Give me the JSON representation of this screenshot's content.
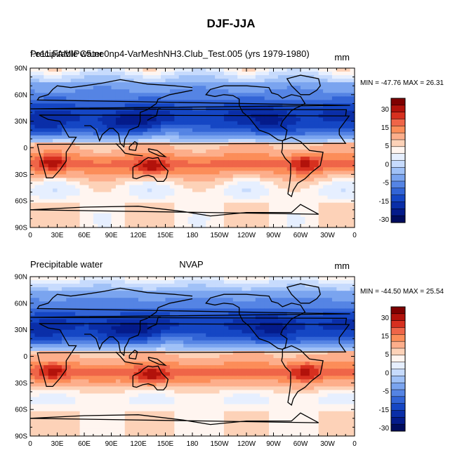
{
  "title": "DJF-JJA",
  "chart_data": [
    {
      "type": "heatmap",
      "left_title": "Precipitable water",
      "center_title": "",
      "overlapping_title": "f.e11.FAMIPC5.ne0np4-VarMeshNH3.Club_Test.005 (yrs 1979-1980)",
      "right_title": "mm",
      "min_max": "MIN = -47.76 MAX =  26.31",
      "x_tick_labels": [
        "0",
        "30E",
        "60E",
        "90E",
        "120E",
        "150E",
        "180",
        "150W",
        "120W",
        "90W",
        "60W",
        "30W",
        "0"
      ],
      "y_tick_labels": [
        "90N",
        "60N",
        "30N",
        "0",
        "30S",
        "60S",
        "90S"
      ],
      "colorbar_labels": [
        "30",
        "15",
        "5",
        "0",
        "-5",
        "-15",
        "-30"
      ],
      "xlim": [
        0,
        360
      ],
      "ylim": [
        -90,
        90
      ]
    },
    {
      "type": "heatmap",
      "left_title": "Precipitable water",
      "center_title": "NVAP",
      "overlapping_title": "",
      "right_title": "mm",
      "min_max": "MIN = -44.50 MAX =  25.54",
      "x_tick_labels": [
        "0",
        "30E",
        "60E",
        "90E",
        "120E",
        "150E",
        "180",
        "150W",
        "120W",
        "90W",
        "60W",
        "30W",
        "0"
      ],
      "y_tick_labels": [
        "90N",
        "60N",
        "30N",
        "0",
        "30S",
        "60S",
        "90S"
      ],
      "colorbar_labels": [
        "30",
        "15",
        "5",
        "0",
        "-5",
        "-15",
        "-30"
      ],
      "xlim": [
        0,
        360
      ],
      "ylim": [
        -90,
        90
      ]
    }
  ],
  "colorbar_colors": [
    "#7f0000",
    "#b2120b",
    "#d7301f",
    "#ef6548",
    "#fc8d59",
    "#fdae8b",
    "#fdd2b8",
    "#fff5f0",
    "#e6efff",
    "#c7dbfd",
    "#a0c1f7",
    "#7aa4ef",
    "#5584e4",
    "#3264d6",
    "#1546c4",
    "#0a2ea8",
    "#041b8a",
    "#000c5e"
  ]
}
